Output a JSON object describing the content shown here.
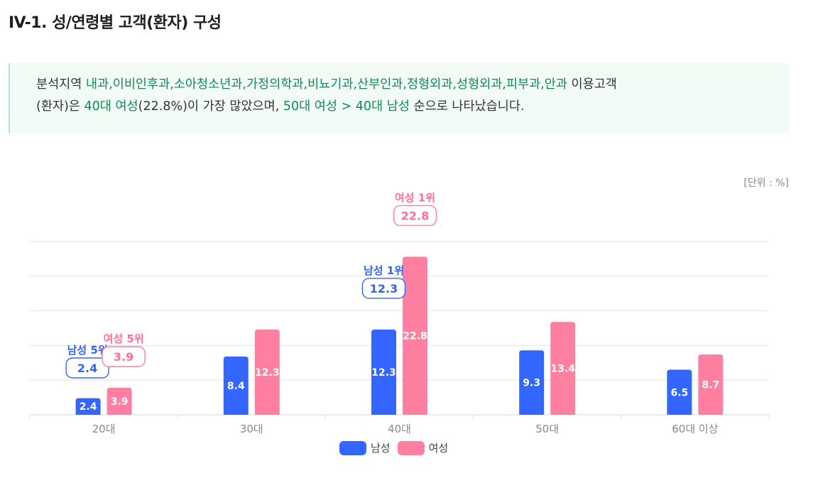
{
  "page": {
    "title": "IV-1. 성/연령별 고객(환자) 구성",
    "unit": "[단위 : %]"
  },
  "summary": {
    "p1": "분석지역 ",
    "p2": "내과,이비인후과,소아청소년과,가정의학과,비뇨기과,산부인과,정형외과,성형외과,피부과,안과",
    "p3": " 이용고객",
    "p4": "(환자)은 ",
    "p5": "40대 여성",
    "p6": "(22.8%)이 가장 많았으며, ",
    "p7": "50대 여성 > 40대 남성",
    "p8": " 순으로 나타났습니다."
  },
  "chart_data": {
    "type": "bar",
    "categories": [
      "20대",
      "30대",
      "40대",
      "50대",
      "60대 이상"
    ],
    "series": [
      {
        "name": "남성",
        "color": "#3366ff",
        "values": [
          2.4,
          8.4,
          12.3,
          9.3,
          6.5
        ]
      },
      {
        "name": "여성",
        "color": "#ff7fa0",
        "values": [
          3.9,
          12.3,
          22.8,
          13.4,
          8.7
        ]
      }
    ],
    "ylim": [
      0,
      25
    ],
    "grid": true,
    "legend_position": "bottom-center",
    "annotations": [
      {
        "series": 0,
        "category": 0,
        "rank_label": "남성 5위",
        "value_label": "2.4"
      },
      {
        "series": 1,
        "category": 0,
        "rank_label": "여성 5위",
        "value_label": "3.9"
      },
      {
        "series": 0,
        "category": 2,
        "rank_label": "남성 1위",
        "value_label": "12.3"
      },
      {
        "series": 1,
        "category": 2,
        "rank_label": "여성 1위",
        "value_label": "22.8"
      }
    ]
  }
}
